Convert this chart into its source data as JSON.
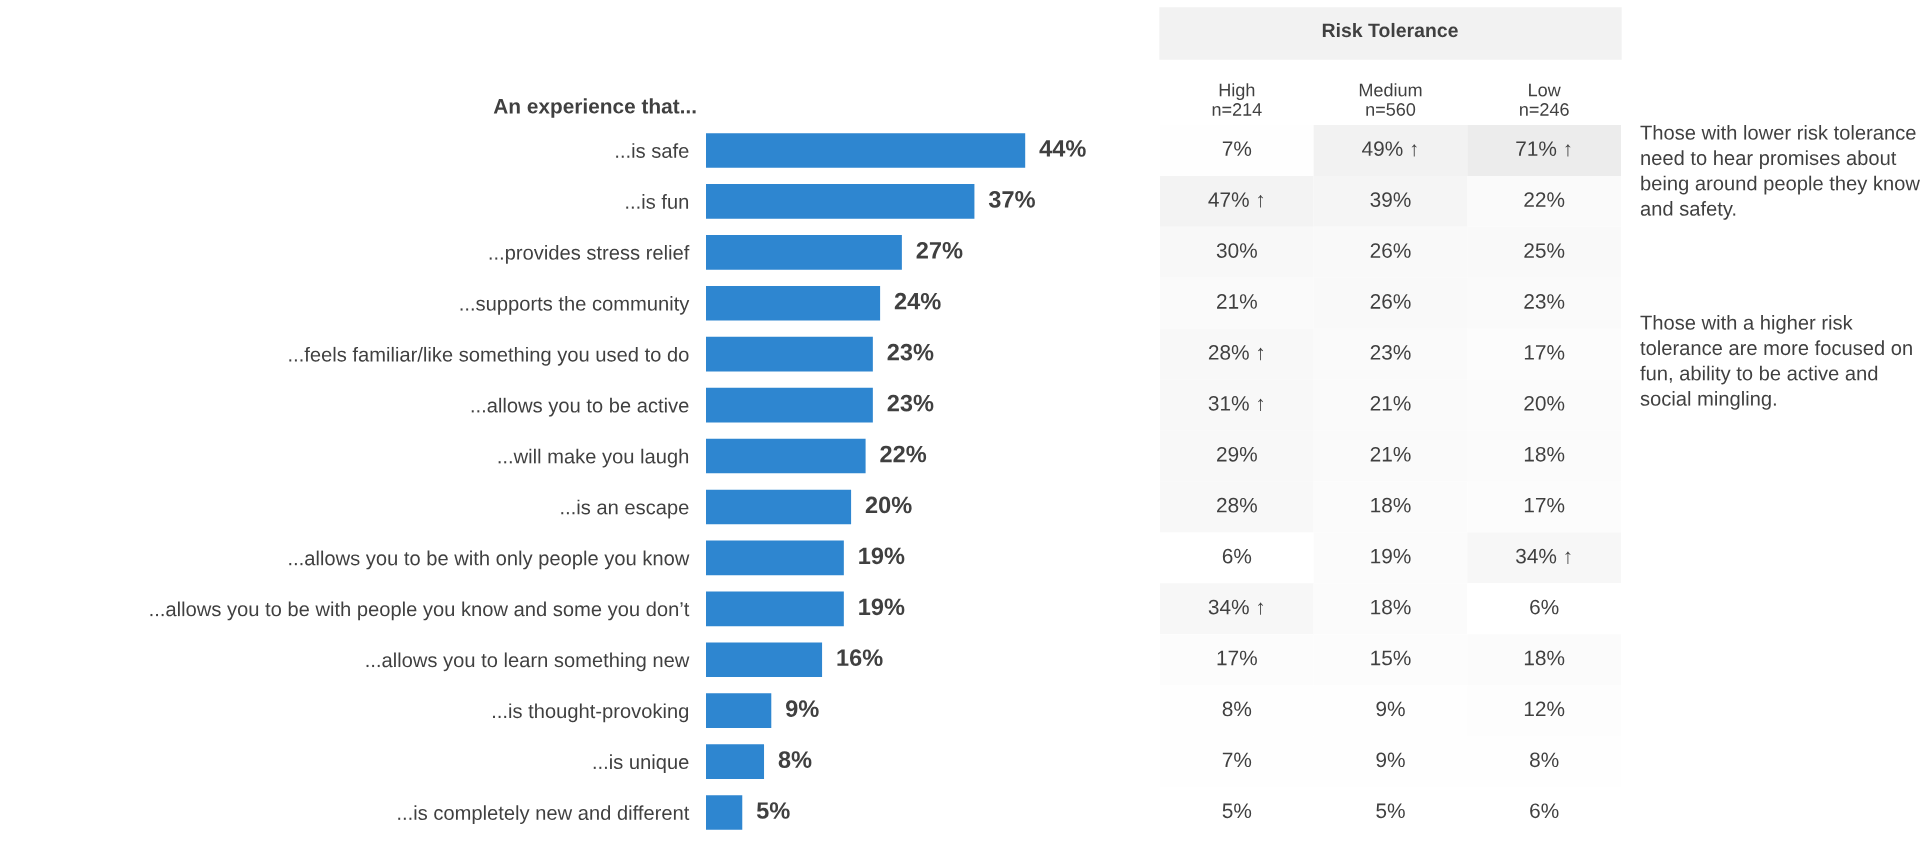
{
  "chart_data": [
    {
      "type": "bar",
      "orientation": "horizontal",
      "title": "An experience that...",
      "categories": [
        "...is safe",
        "...is fun",
        "...provides stress relief",
        "...supports the community",
        "...feels familiar/like something you used to do",
        "...allows you to be active",
        "...will make you laugh",
        "...is an escape",
        "...allows you to be with only people you know",
        "...allows you to be with people you know and some you don’t",
        "...allows you to learn something new",
        "...is thought-provoking",
        "...is unique",
        "...is completely new and different"
      ],
      "values": [
        44,
        37,
        27,
        24,
        23,
        23,
        22,
        20,
        19,
        19,
        16,
        9,
        8,
        5
      ],
      "value_labels": [
        "44%",
        "37%",
        "27%",
        "24%",
        "23%",
        "23%",
        "22%",
        "20%",
        "19%",
        "19%",
        "16%",
        "9%",
        "8%",
        "5%"
      ],
      "color": "#2e86d0",
      "tick_labels": "y",
      "grid": false,
      "legend": false
    },
    {
      "type": "heatmap",
      "title": "Risk Tolerance",
      "categories": [
        "High\nn=214",
        "Medium\nn=560",
        "Low\nn=246"
      ],
      "y_categories": [
        null,
        null,
        null,
        null,
        null,
        null,
        null,
        null,
        null,
        null,
        null,
        null,
        null,
        null
      ],
      "cells": [
        [
          7,
          49,
          71
        ],
        [
          47,
          39,
          22
        ],
        [
          30,
          26,
          25
        ],
        [
          21,
          26,
          23
        ],
        [
          28,
          23,
          17
        ],
        [
          31,
          21,
          20
        ],
        [
          29,
          21,
          18
        ],
        [
          28,
          18,
          17
        ],
        [
          6,
          19,
          34
        ],
        [
          34,
          18,
          6
        ],
        [
          17,
          15,
          18
        ],
        [
          8,
          9,
          12
        ],
        [
          7,
          9,
          8
        ],
        [
          5,
          5,
          6
        ]
      ],
      "cell_labels": [
        [
          "7%",
          "49% ↑",
          "71% ↑"
        ],
        [
          "47% ↑",
          "39%",
          "22%"
        ],
        [
          "30%",
          "26%",
          "25%"
        ],
        [
          "21%",
          "26%",
          "23%"
        ],
        [
          "28% ↑",
          "23%",
          "17%"
        ],
        [
          "31% ↑",
          "21%",
          "20%"
        ],
        [
          "29%",
          "21%",
          "18%"
        ],
        [
          "28%",
          "18%",
          "17%"
        ],
        [
          "6%",
          "19%",
          "34% ↑"
        ],
        [
          "34% ↑",
          "18%",
          "6%"
        ],
        [
          "17%",
          "15%",
          "18%"
        ],
        [
          "8%",
          "9%",
          "12%"
        ],
        [
          "7%",
          "9%",
          "8%"
        ],
        [
          "5%",
          "5%",
          "6%"
        ]
      ],
      "annotations": [
        "Those with lower risk tolerance need to hear promises about being around people they know and safety.",
        "Those with a higher risk tolerance are more focused on fun, ability to be active and social mingling."
      ]
    }
  ]
}
